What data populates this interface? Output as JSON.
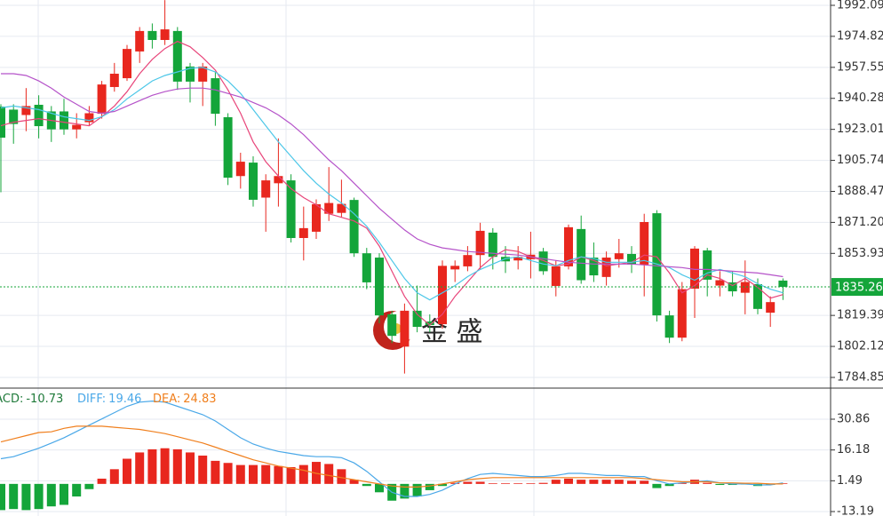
{
  "chart_data": [
    {
      "type": "candlestick",
      "up_color": "#e8271e",
      "down_color": "#14a53a",
      "open": [
        1935.7,
        1934,
        1931,
        1936.7,
        1933,
        1933,
        1923,
        1927,
        1931.7,
        1946.6,
        1951.5,
        1966.4,
        1977.8,
        1972.8,
        1977.8,
        1958,
        1949.6,
        1951.5,
        1929.8,
        1897,
        1904.5,
        1885,
        1893,
        1894.6,
        1862.5,
        1866,
        1876,
        1876.5,
        1883.7,
        1854,
        1851.6,
        1820,
        1802,
        1822,
        1816,
        1814.5,
        1845,
        1846.7,
        1853,
        1865.5,
        1852,
        1850,
        1850.7,
        1855,
        1835.8,
        1846.7,
        1867.5,
        1851.6,
        1840.8,
        1850.7,
        1853.6,
        1847.7,
        1876.3,
        1819.4,
        1807,
        1834.3,
        1855.6,
        1836,
        1837.8,
        1832,
        1836.8,
        1820.9,
        1838.8
      ],
      "high": [
        1937,
        1937,
        1946,
        1942,
        1936,
        1940,
        1932,
        1936,
        1950,
        1960,
        1970,
        1980,
        1982,
        1995,
        1980,
        1960,
        1960,
        1955,
        1932,
        1910,
        1908,
        1898,
        1918,
        1898,
        1880,
        1884,
        1902,
        1895,
        1885,
        1857,
        1854,
        1822,
        1826,
        1836,
        1820,
        1850,
        1850,
        1858,
        1871,
        1868,
        1858,
        1858,
        1866,
        1857,
        1850,
        1870,
        1875,
        1860,
        1855,
        1862,
        1858,
        1876,
        1878,
        1822,
        1838,
        1858,
        1857,
        1844,
        1844,
        1850,
        1840,
        1830,
        1840
      ],
      "low": [
        1888,
        1915,
        1922,
        1918,
        1916,
        1920,
        1918,
        1925,
        1929,
        1944,
        1950,
        1960,
        1968,
        1970,
        1945,
        1938,
        1936,
        1925,
        1892,
        1890,
        1880,
        1866,
        1880,
        1860,
        1850,
        1862,
        1872,
        1874,
        1852,
        1834,
        1815,
        1804,
        1787,
        1810,
        1810,
        1812,
        1838,
        1844,
        1845,
        1845,
        1843,
        1845,
        1840,
        1842,
        1830,
        1845,
        1837,
        1838,
        1836,
        1846,
        1843,
        1830,
        1816,
        1804,
        1805,
        1818,
        1830,
        1830,
        1830,
        1820,
        1820,
        1813,
        1828
      ],
      "close": [
        1918.4,
        1926,
        1936,
        1924.8,
        1923,
        1923,
        1925.5,
        1932,
        1948,
        1954,
        1967.8,
        1977.8,
        1972.8,
        1978.7,
        1949.6,
        1949.6,
        1958,
        1931.7,
        1896.1,
        1905,
        1883.8,
        1894.6,
        1897,
        1862.5,
        1868,
        1881.3,
        1882,
        1881.5,
        1854,
        1837.8,
        1819.4,
        1808,
        1822,
        1813,
        1814,
        1847,
        1847,
        1853,
        1866.5,
        1852,
        1849.5,
        1852,
        1853.2,
        1844,
        1846.7,
        1868.5,
        1839,
        1841.7,
        1851.6,
        1854,
        1847.7,
        1871.4,
        1819.4,
        1807,
        1834,
        1856.6,
        1839.3,
        1839,
        1832.8,
        1838,
        1823,
        1826.8,
        1835.3
      ],
      "lines": [
        {
          "color": "#e8457a",
          "values": [
            1925,
            1927,
            1928,
            1929,
            1928,
            1927,
            1926,
            1925,
            1930,
            1936,
            1944,
            1954,
            1962,
            1968,
            1972,
            1969,
            1963,
            1956,
            1945,
            1932,
            1916,
            1905,
            1897,
            1890,
            1885,
            1881,
            1876,
            1874,
            1872,
            1868,
            1858,
            1844,
            1830,
            1820,
            1814,
            1820,
            1830,
            1838,
            1846,
            1852,
            1856,
            1855,
            1852,
            1850,
            1847,
            1848,
            1852,
            1850,
            1847,
            1848,
            1849,
            1853,
            1852,
            1843,
            1832,
            1836,
            1842,
            1840,
            1836,
            1840,
            1835,
            1829,
            1831
          ]
        },
        {
          "color": "#4dc7e8",
          "values": [
            1935,
            1936,
            1935,
            1934,
            1932,
            1930,
            1929,
            1928,
            1930,
            1934,
            1940,
            1945,
            1950,
            1953,
            1955,
            1957,
            1957.5,
            1955,
            1950,
            1943,
            1934,
            1925,
            1916,
            1908,
            1900,
            1893,
            1887,
            1882,
            1876,
            1869,
            1860,
            1850,
            1840,
            1832,
            1828,
            1832,
            1836,
            1841,
            1845,
            1848,
            1851,
            1852,
            1850,
            1848,
            1847,
            1850,
            1852,
            1851,
            1849,
            1849,
            1849,
            1850,
            1848,
            1846,
            1842,
            1839,
            1843,
            1845,
            1843,
            1841,
            1837,
            1834,
            1832
          ]
        },
        {
          "color": "#b553c9",
          "values": [
            1954,
            1954,
            1953,
            1950,
            1946,
            1941,
            1937,
            1933,
            1932,
            1933,
            1936,
            1939,
            1942,
            1944,
            1945.5,
            1946,
            1946,
            1945,
            1943,
            1941,
            1938,
            1935,
            1931,
            1926,
            1920,
            1913,
            1906,
            1900,
            1893,
            1886,
            1879,
            1873,
            1867,
            1862,
            1859,
            1857,
            1856,
            1855,
            1854.5,
            1854,
            1853.5,
            1853,
            1852,
            1851,
            1850,
            1849,
            1848.5,
            1848,
            1848,
            1848,
            1848,
            1847.5,
            1847,
            1846.5,
            1846,
            1845,
            1845,
            1844.5,
            1844,
            1843.5,
            1843,
            1842,
            1841
          ]
        }
      ],
      "last_price": {
        "value": 1835.26,
        "color": "#14a53a"
      },
      "ylim": [
        1778.9,
        1995.06
      ],
      "yticks": [
        1992.09,
        1974.82,
        1957.55,
        1940.28,
        1923.01,
        1905.74,
        1888.47,
        {
          "value": 1871.2,
          "label": "1871.20"
        },
        1853.93,
        1819.39,
        1802.12,
        1784.85
      ],
      "grid": true,
      "watermark": "金 盛"
    },
    {
      "type": "macd",
      "up_color": "#e8271e",
      "down_color": "#14a53a",
      "histogram": [
        -12.5,
        -12,
        -12.5,
        -12,
        -10.73,
        -10,
        -6,
        -2.5,
        2.5,
        7,
        12,
        15,
        16.5,
        17,
        16.5,
        15,
        13.5,
        11,
        10,
        9,
        9,
        9,
        8.5,
        8,
        9,
        10.5,
        9.5,
        7,
        2,
        -1,
        -4,
        -8,
        -7,
        -6,
        -3,
        -1,
        0.5,
        1,
        1,
        0.3,
        0.3,
        0.3,
        0.3,
        0.5,
        2,
        2.5,
        2,
        2,
        2,
        2,
        1.5,
        1.5,
        -2,
        -1,
        0.5,
        2,
        0.5,
        -0.5,
        -0.5,
        -0.3,
        -1,
        -0.5,
        0.3
      ],
      "series": [
        {
          "name": "DIFF:",
          "color": "#4aa8e8",
          "values": [
            12,
            13,
            15,
            17,
            19.46,
            22,
            25,
            28,
            31,
            34,
            37,
            39,
            39.5,
            39,
            37,
            35,
            33,
            30,
            26,
            22,
            19,
            17,
            15.5,
            14.5,
            13.5,
            13,
            13,
            12.5,
            10,
            6,
            1,
            -4,
            -6,
            -6,
            -5,
            -3,
            0,
            2.5,
            4.5,
            5,
            4.5,
            4,
            3.5,
            3.5,
            4,
            5,
            5,
            4.5,
            4,
            4,
            3.5,
            3.5,
            1.5,
            0,
            0.5,
            1,
            1.5,
            0.5,
            0,
            0,
            -0.5,
            -0.5,
            0.5
          ]
        },
        {
          "name": "DEA:",
          "color": "#f07f1d",
          "values": [
            20,
            21.5,
            23,
            24.5,
            24.83,
            26.5,
            27.5,
            27.5,
            27.5,
            27,
            26.5,
            26,
            25,
            24,
            22.5,
            21,
            19.5,
            17.5,
            15.5,
            13.5,
            11.5,
            10,
            8.5,
            7.5,
            6.5,
            5,
            4,
            3,
            2,
            1,
            0,
            -1,
            -1.5,
            -1.5,
            -1,
            0,
            1,
            2,
            2.5,
            3,
            3,
            3,
            3,
            3,
            3,
            3,
            3,
            3,
            3,
            3,
            3,
            2.5,
            2,
            1.5,
            1,
            1,
            1,
            0.5,
            0.5,
            0.3,
            0.3,
            0,
            0
          ]
        }
      ],
      "readouts": [
        {
          "name": "MACD:",
          "value": -10.73,
          "color": "#1f7a3a"
        },
        {
          "name": "DIFF:",
          "value": 19.46,
          "color": "#4aa8e8"
        },
        {
          "name": "DEA:",
          "value": 24.83,
          "color": "#f07f1d"
        }
      ],
      "ylim": [
        -15.31,
        45.68
      ],
      "yticks": [
        30.86,
        16.18,
        1.49,
        -13.19
      ]
    }
  ]
}
